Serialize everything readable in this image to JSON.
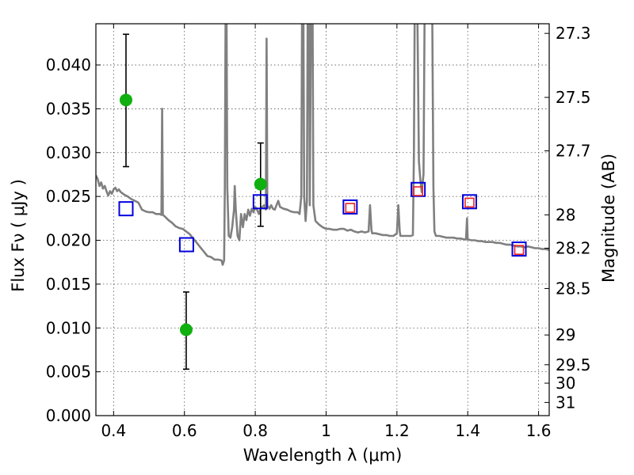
{
  "chart_data": {
    "type": "scatter",
    "xlabel": "Wavelength  λ (μm)",
    "ylabel": "Flux  Fν  ( μJy )",
    "y2label": "Magnitude (AB)",
    "xlim": [
      0.35,
      1.63
    ],
    "ylim": [
      0.0,
      0.0447
    ],
    "grid": true,
    "x_ticks": [
      {
        "value": 0.4,
        "label": "0.4"
      },
      {
        "value": 0.6,
        "label": "0.6"
      },
      {
        "value": 0.8,
        "label": "0.8"
      },
      {
        "value": 1.0,
        "label": "1"
      },
      {
        "value": 1.2,
        "label": "1.2"
      },
      {
        "value": 1.4,
        "label": "1.4"
      },
      {
        "value": 1.6,
        "label": "1.6"
      }
    ],
    "y_ticks": [
      {
        "value": 0.0,
        "label": "0.000"
      },
      {
        "value": 0.005,
        "label": "0.005"
      },
      {
        "value": 0.01,
        "label": "0.010"
      },
      {
        "value": 0.015,
        "label": "0.015"
      },
      {
        "value": 0.02,
        "label": "0.020"
      },
      {
        "value": 0.025,
        "label": "0.025"
      },
      {
        "value": 0.03,
        "label": "0.030"
      },
      {
        "value": 0.035,
        "label": "0.035"
      },
      {
        "value": 0.04,
        "label": "0.040"
      }
    ],
    "y2_ticks": [
      {
        "flux": 0.0436,
        "label": "27.3"
      },
      {
        "flux": 0.0363,
        "label": "27.5"
      },
      {
        "flux": 0.0302,
        "label": "27.7"
      },
      {
        "flux": 0.0229,
        "label": "28"
      },
      {
        "flux": 0.0191,
        "label": "28.2"
      },
      {
        "flux": 0.0145,
        "label": "28.5"
      },
      {
        "flux": 0.0092,
        "label": "29"
      },
      {
        "flux": 0.0058,
        "label": "29.5"
      },
      {
        "flux": 0.0037,
        "label": "30"
      },
      {
        "flux": 0.0015,
        "label": "31"
      }
    ],
    "model_spectrum": {
      "color": "#808080",
      "points": [
        [
          0.35,
          0.0274
        ],
        [
          0.355,
          0.027
        ],
        [
          0.36,
          0.0262
        ],
        [
          0.365,
          0.0266
        ],
        [
          0.37,
          0.0259
        ],
        [
          0.375,
          0.0262
        ],
        [
          0.38,
          0.0256
        ],
        [
          0.385,
          0.0251
        ],
        [
          0.39,
          0.0256
        ],
        [
          0.395,
          0.0253
        ],
        [
          0.4,
          0.0258
        ],
        [
          0.405,
          0.026
        ],
        [
          0.41,
          0.0256
        ],
        [
          0.415,
          0.0258
        ],
        [
          0.42,
          0.0255
        ],
        [
          0.43,
          0.0252
        ],
        [
          0.44,
          0.025
        ],
        [
          0.45,
          0.0247
        ],
        [
          0.46,
          0.0245
        ],
        [
          0.47,
          0.0243
        ],
        [
          0.48,
          0.0235
        ],
        [
          0.49,
          0.0233
        ],
        [
          0.5,
          0.0232
        ],
        [
          0.51,
          0.0232
        ],
        [
          0.52,
          0.023
        ],
        [
          0.53,
          0.023
        ],
        [
          0.535,
          0.0229
        ],
        [
          0.537,
          0.035
        ],
        [
          0.539,
          0.0229
        ],
        [
          0.545,
          0.0227
        ],
        [
          0.555,
          0.0223
        ],
        [
          0.565,
          0.022
        ],
        [
          0.575,
          0.0216
        ],
        [
          0.585,
          0.0214
        ],
        [
          0.595,
          0.0213
        ],
        [
          0.605,
          0.021
        ],
        [
          0.615,
          0.0207
        ],
        [
          0.625,
          0.0202
        ],
        [
          0.635,
          0.0197
        ],
        [
          0.645,
          0.0192
        ],
        [
          0.655,
          0.0187
        ],
        [
          0.665,
          0.0182
        ],
        [
          0.675,
          0.0181
        ],
        [
          0.685,
          0.0178
        ],
        [
          0.695,
          0.0178
        ],
        [
          0.705,
          0.0177
        ],
        [
          0.708,
          0.0172
        ],
        [
          0.712,
          0.0177
        ],
        [
          0.714,
          0.026
        ],
        [
          0.716,
          0.0448
        ],
        [
          0.719,
          0.0448
        ],
        [
          0.721,
          0.026
        ],
        [
          0.725,
          0.0205
        ],
        [
          0.73,
          0.0203
        ],
        [
          0.735,
          0.0215
        ],
        [
          0.74,
          0.0235
        ],
        [
          0.742,
          0.0262
        ],
        [
          0.745,
          0.0235
        ],
        [
          0.75,
          0.0205
        ],
        [
          0.755,
          0.02
        ],
        [
          0.76,
          0.023
        ],
        [
          0.765,
          0.0215
        ],
        [
          0.77,
          0.023
        ],
        [
          0.775,
          0.0223
        ],
        [
          0.78,
          0.0235
        ],
        [
          0.785,
          0.0228
        ],
        [
          0.79,
          0.0236
        ],
        [
          0.795,
          0.0232
        ],
        [
          0.8,
          0.0238
        ],
        [
          0.805,
          0.0235
        ],
        [
          0.81,
          0.023
        ],
        [
          0.815,
          0.0236
        ],
        [
          0.82,
          0.0238
        ],
        [
          0.825,
          0.024
        ],
        [
          0.83,
          0.0235
        ],
        [
          0.832,
          0.043
        ],
        [
          0.834,
          0.024
        ],
        [
          0.84,
          0.0236
        ],
        [
          0.845,
          0.024
        ],
        [
          0.85,
          0.0236
        ],
        [
          0.855,
          0.0235
        ],
        [
          0.86,
          0.024
        ],
        [
          0.865,
          0.0245
        ],
        [
          0.87,
          0.0238
        ],
        [
          0.88,
          0.0236
        ],
        [
          0.89,
          0.0235
        ],
        [
          0.9,
          0.0233
        ],
        [
          0.91,
          0.0232
        ],
        [
          0.92,
          0.0232
        ],
        [
          0.925,
          0.023
        ],
        [
          0.93,
          0.025
        ],
        [
          0.932,
          0.0448
        ],
        [
          0.936,
          0.0448
        ],
        [
          0.938,
          0.025
        ],
        [
          0.942,
          0.0222
        ],
        [
          0.946,
          0.0245
        ],
        [
          0.948,
          0.0448
        ],
        [
          0.952,
          0.0448
        ],
        [
          0.954,
          0.024
        ],
        [
          0.957,
          0.0448
        ],
        [
          0.962,
          0.0448
        ],
        [
          0.964,
          0.024
        ],
        [
          0.97,
          0.0222
        ],
        [
          0.98,
          0.0218
        ],
        [
          0.99,
          0.0215
        ],
        [
          1.0,
          0.0213
        ],
        [
          1.01,
          0.0213
        ],
        [
          1.02,
          0.0212
        ],
        [
          1.03,
          0.0212
        ],
        [
          1.04,
          0.0213
        ],
        [
          1.05,
          0.0213
        ],
        [
          1.06,
          0.0211
        ],
        [
          1.07,
          0.0212
        ],
        [
          1.08,
          0.021
        ],
        [
          1.09,
          0.0209
        ],
        [
          1.1,
          0.021
        ],
        [
          1.11,
          0.0209
        ],
        [
          1.12,
          0.021
        ],
        [
          1.124,
          0.024
        ],
        [
          1.128,
          0.0212
        ],
        [
          1.13,
          0.0208
        ],
        [
          1.14,
          0.0208
        ],
        [
          1.15,
          0.0207
        ],
        [
          1.16,
          0.0206
        ],
        [
          1.17,
          0.0206
        ],
        [
          1.18,
          0.0205
        ],
        [
          1.19,
          0.0205
        ],
        [
          1.2,
          0.0208
        ],
        [
          1.204,
          0.024
        ],
        [
          1.208,
          0.021
        ],
        [
          1.21,
          0.0205
        ],
        [
          1.22,
          0.0205
        ],
        [
          1.23,
          0.0205
        ],
        [
          1.24,
          0.0205
        ],
        [
          1.245,
          0.0206
        ],
        [
          1.248,
          0.03
        ],
        [
          1.25,
          0.0448
        ],
        [
          1.258,
          0.0448
        ],
        [
          1.262,
          0.029
        ],
        [
          1.266,
          0.027
        ],
        [
          1.27,
          0.0255
        ],
        [
          1.275,
          0.0275
        ],
        [
          1.278,
          0.0448
        ],
        [
          1.3,
          0.0448
        ],
        [
          1.303,
          0.026
        ],
        [
          1.306,
          0.021
        ],
        [
          1.31,
          0.0205
        ],
        [
          1.32,
          0.0205
        ],
        [
          1.33,
          0.0204
        ],
        [
          1.34,
          0.0203
        ],
        [
          1.35,
          0.0203
        ],
        [
          1.36,
          0.0203
        ],
        [
          1.37,
          0.0202
        ],
        [
          1.38,
          0.0202
        ],
        [
          1.39,
          0.0201
        ],
        [
          1.395,
          0.0201
        ],
        [
          1.398,
          0.0225
        ],
        [
          1.4,
          0.0201
        ],
        [
          1.41,
          0.02
        ],
        [
          1.42,
          0.02
        ],
        [
          1.43,
          0.0199
        ],
        [
          1.44,
          0.0199
        ],
        [
          1.45,
          0.0198
        ],
        [
          1.46,
          0.0198
        ],
        [
          1.47,
          0.0198
        ],
        [
          1.48,
          0.0197
        ],
        [
          1.49,
          0.0197
        ],
        [
          1.5,
          0.0196
        ],
        [
          1.51,
          0.0195
        ],
        [
          1.52,
          0.0195
        ],
        [
          1.53,
          0.0194
        ],
        [
          1.54,
          0.0193
        ],
        [
          1.55,
          0.0193
        ],
        [
          1.56,
          0.0192
        ],
        [
          1.57,
          0.0193
        ],
        [
          1.58,
          0.0192
        ],
        [
          1.59,
          0.0191
        ],
        [
          1.6,
          0.0191
        ],
        [
          1.61,
          0.019
        ],
        [
          1.62,
          0.019
        ],
        [
          1.63,
          0.0189
        ]
      ]
    },
    "observed": {
      "color": "#10b010",
      "points": [
        {
          "x": 0.435,
          "y": 0.036,
          "ylo": 0.0284,
          "yhi": 0.0435
        },
        {
          "x": 0.605,
          "y": 0.0098,
          "ylo": 0.0053,
          "yhi": 0.0141
        },
        {
          "x": 0.815,
          "y": 0.0264,
          "ylo": 0.0216,
          "yhi": 0.0311
        }
      ]
    },
    "model_photometry": {
      "color": "#0000dd",
      "points": [
        {
          "x": 0.435,
          "y": 0.0236
        },
        {
          "x": 0.606,
          "y": 0.0195
        },
        {
          "x": 0.814,
          "y": 0.0244
        },
        {
          "x": 1.068,
          "y": 0.0238
        },
        {
          "x": 1.26,
          "y": 0.0258
        },
        {
          "x": 1.405,
          "y": 0.0244
        },
        {
          "x": 1.545,
          "y": 0.019
        }
      ]
    },
    "fitted_photometry": {
      "color": "#ee2222",
      "points": [
        {
          "x": 1.068,
          "y": 0.0237
        },
        {
          "x": 1.26,
          "y": 0.0256
        },
        {
          "x": 1.405,
          "y": 0.0243
        },
        {
          "x": 1.545,
          "y": 0.0189
        }
      ]
    }
  }
}
